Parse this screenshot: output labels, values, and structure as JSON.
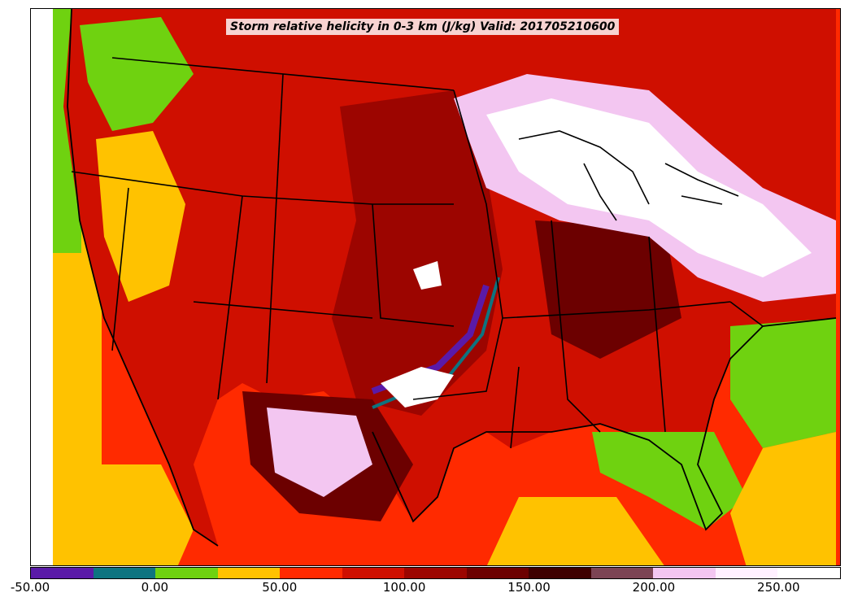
{
  "title": "Storm relative helicity in 0-3 km (J/kg) Valid: 201705210600",
  "colorbar": {
    "colors": [
      "#5a1aa8",
      "#0e7480",
      "#6fd210",
      "#ffc200",
      "#ff2a00",
      "#cf0f00",
      "#9c0500",
      "#6c0000",
      "#3e0000",
      "#7c4454",
      "#f3c6f1",
      "#fff0ff",
      "#ffffff"
    ],
    "tick_labels": [
      "-50.00",
      "0.00",
      "50.00",
      "100.00",
      "150.00",
      "200.00",
      "250.00"
    ]
  },
  "map_colors": {
    "ocean": "#ff2a00",
    "land": "#cf0f00",
    "boundary": "#000000"
  }
}
